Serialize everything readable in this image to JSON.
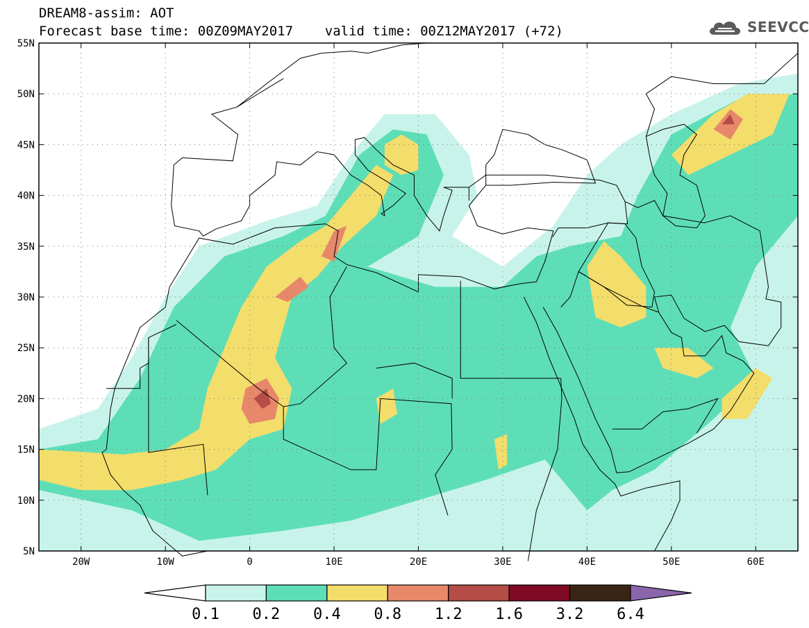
{
  "header": {
    "title_line1": "DREAM8-assim: AOT",
    "title_line2": "Forecast base time: 00Z09MAY2017    valid time: 00Z12MAY2017 (+72)",
    "brand": "SEEVCCC",
    "brand_icon": "cloud-icon"
  },
  "map": {
    "extent": {
      "lon": [
        -25,
        65
      ],
      "lat": [
        5,
        55
      ]
    },
    "lat_ticks": [
      {
        "value": 55,
        "label": "55N"
      },
      {
        "value": 50,
        "label": "50N"
      },
      {
        "value": 45,
        "label": "45N"
      },
      {
        "value": 40,
        "label": "40N"
      },
      {
        "value": 35,
        "label": "35N"
      },
      {
        "value": 30,
        "label": "30N"
      },
      {
        "value": 25,
        "label": "25N"
      },
      {
        "value": 20,
        "label": "20N"
      },
      {
        "value": 15,
        "label": "15N"
      },
      {
        "value": 10,
        "label": "10N"
      },
      {
        "value": 5,
        "label": "5N"
      }
    ],
    "lon_ticks": [
      {
        "value": -20,
        "label": "20W"
      },
      {
        "value": -10,
        "label": "10W"
      },
      {
        "value": 0,
        "label": "0"
      },
      {
        "value": 10,
        "label": "10E"
      },
      {
        "value": 20,
        "label": "20E"
      },
      {
        "value": 30,
        "label": "30E"
      },
      {
        "value": 40,
        "label": "40E"
      },
      {
        "value": 50,
        "label": "50E"
      },
      {
        "value": 60,
        "label": "60E"
      }
    ],
    "gridlines": "dotted"
  },
  "colorbar": {
    "levels": [
      "0.1",
      "0.2",
      "0.4",
      "0.8",
      "1.2",
      "1.6",
      "3.2",
      "6.4"
    ],
    "colors": [
      "#ffffff",
      "#c8f3ea",
      "#5edeb7",
      "#f3dd6b",
      "#e8886a",
      "#b54c45",
      "#7e0a25",
      "#3a2413",
      "#8a66ad"
    ]
  }
}
